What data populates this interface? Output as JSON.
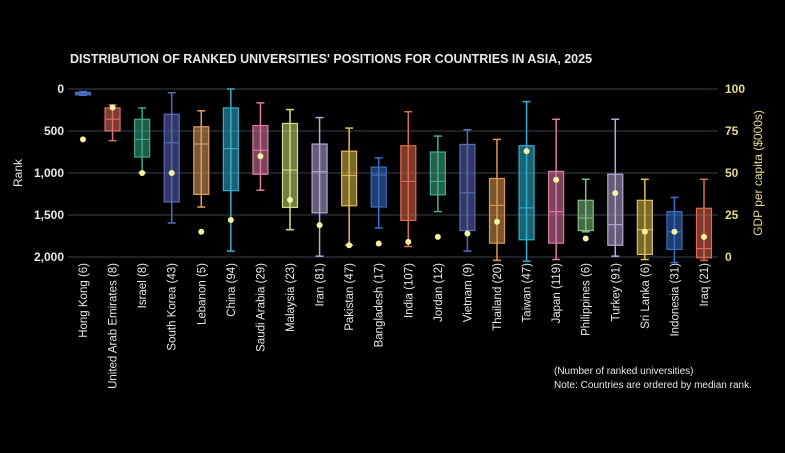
{
  "chart_data": {
    "type": "box",
    "title": "DISTRIBUTION OF RANKED UNIVERSITIES' POSITIONS FOR COUNTRIES IN ASIA, 2025",
    "ylabel": "Rank",
    "y2label": "GDP per capita ($000s)",
    "ylim": [
      0,
      2000
    ],
    "y_inverted": true,
    "y2lim": [
      0,
      100
    ],
    "yticks": [
      "0",
      "500",
      "1,000",
      "1,500",
      "2,000"
    ],
    "ytick_values": [
      0,
      500,
      1000,
      1500,
      2000
    ],
    "y2ticks": [
      "100",
      "75",
      "50",
      "25",
      "0"
    ],
    "y2tick_values": [
      100,
      75,
      50,
      25,
      0
    ],
    "grid": true,
    "notes": [
      "(Number of ranked universities)",
      "Note: Countries are ordered by median rank."
    ],
    "colors": {
      "background": "#000000",
      "gdp_dot": "#f5f0a0",
      "gdp_axis": "#e6dc8c",
      "grid": "#3a4048"
    },
    "series": [
      {
        "name": "Hong Kong (6)",
        "min": 30,
        "q1": 40,
        "median": 55,
        "q3": 70,
        "max": 75,
        "gdp": 70,
        "color": "#4a6fc0"
      },
      {
        "name": "United Arab Emirates (8)",
        "min": 190,
        "q1": 225,
        "median": 360,
        "q3": 500,
        "max": 615,
        "gdp": 89,
        "color": "#e07060"
      },
      {
        "name": "Israel (8)",
        "min": 225,
        "q1": 360,
        "median": 600,
        "q3": 810,
        "max": 995,
        "gdp": 50,
        "color": "#3aa88a"
      },
      {
        "name": "South Korea (43)",
        "min": 45,
        "q1": 300,
        "median": 640,
        "q3": 1345,
        "max": 1595,
        "gdp": 50,
        "color": "#5a6ab8"
      },
      {
        "name": "Lebanon (5)",
        "min": 260,
        "q1": 450,
        "median": 655,
        "q3": 1255,
        "max": 1405,
        "gdp": 15,
        "color": "#e0a060"
      },
      {
        "name": "China (94)",
        "min": 0,
        "q1": 225,
        "median": 710,
        "q3": 1210,
        "max": 1930,
        "gdp": 22,
        "color": "#30b0d0"
      },
      {
        "name": "Saudi Arabia (29)",
        "min": 165,
        "q1": 435,
        "median": 730,
        "q3": 1015,
        "max": 1205,
        "gdp": 60,
        "color": "#e07aa8"
      },
      {
        "name": "Malaysia (23)",
        "min": 245,
        "q1": 410,
        "median": 965,
        "q3": 1410,
        "max": 1675,
        "gdp": 34,
        "color": "#d0e080"
      },
      {
        "name": "Iran (81)",
        "min": 340,
        "q1": 655,
        "median": 985,
        "q3": 1475,
        "max": 1990,
        "gdp": 19,
        "color": "#b8a8d8"
      },
      {
        "name": "Pakistan (47)",
        "min": 465,
        "q1": 740,
        "median": 1030,
        "q3": 1390,
        "max": 1860,
        "gdp": 7,
        "color": "#e0c050"
      },
      {
        "name": "Bangladesh (17)",
        "min": 820,
        "q1": 930,
        "median": 1025,
        "q3": 1405,
        "max": 1655,
        "gdp": 8,
        "color": "#3a70c8"
      },
      {
        "name": "India (107)",
        "min": 270,
        "q1": 675,
        "median": 1100,
        "q3": 1565,
        "max": 1875,
        "gdp": 9,
        "color": "#e06a50"
      },
      {
        "name": "Jordan (12)",
        "min": 560,
        "q1": 750,
        "median": 1100,
        "q3": 1260,
        "max": 1460,
        "gdp": 12,
        "color": "#40b090"
      },
      {
        "name": "Vietnam (9)",
        "min": 485,
        "q1": 660,
        "median": 1235,
        "q3": 1685,
        "max": 1930,
        "gdp": 14,
        "color": "#5a6ab8"
      },
      {
        "name": "Thailand (20)",
        "min": 600,
        "q1": 1065,
        "median": 1385,
        "q3": 1835,
        "max": 2040,
        "gdp": 21,
        "color": "#e09a50"
      },
      {
        "name": "Taiwan (47)",
        "min": 150,
        "q1": 675,
        "median": 1415,
        "q3": 1795,
        "max": 2050,
        "gdp": 63,
        "color": "#30b0d0"
      },
      {
        "name": "Japan (119)",
        "min": 360,
        "q1": 980,
        "median": 1460,
        "q3": 1835,
        "max": 2030,
        "gdp": 46,
        "color": "#e07aa8"
      },
      {
        "name": "Philippines (6)",
        "min": 1075,
        "q1": 1325,
        "median": 1535,
        "q3": 1685,
        "max": 1700,
        "gdp": 11,
        "color": "#80c080"
      },
      {
        "name": "Turkey (91)",
        "min": 360,
        "q1": 1015,
        "median": 1615,
        "q3": 1860,
        "max": 1990,
        "gdp": 38,
        "color": "#b8a8d8"
      },
      {
        "name": "Sri Lanka (6)",
        "min": 1075,
        "q1": 1325,
        "median": 1675,
        "q3": 1970,
        "max": 2030,
        "gdp": 15,
        "color": "#e0c050"
      },
      {
        "name": "Indonesia (31)",
        "min": 1290,
        "q1": 1460,
        "median": 1700,
        "q3": 1910,
        "max": 2065,
        "gdp": 15,
        "color": "#3a70c8"
      },
      {
        "name": "Iraq (21)",
        "min": 1075,
        "q1": 1420,
        "median": 1900,
        "q3": 2010,
        "max": 2040,
        "gdp": 12,
        "color": "#e06a50"
      }
    ]
  }
}
